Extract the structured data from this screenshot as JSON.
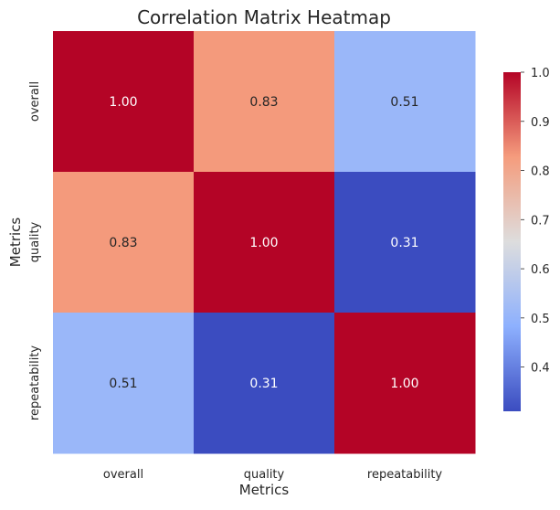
{
  "chart_data": {
    "type": "heatmap",
    "title": "Correlation Matrix Heatmap",
    "xlabel": "Metrics",
    "ylabel": "Metrics",
    "x_categories": [
      "overall",
      "quality",
      "repeatability"
    ],
    "y_categories": [
      "overall",
      "quality",
      "repeatability"
    ],
    "values": [
      [
        1.0,
        0.83,
        0.51
      ],
      [
        0.83,
        1.0,
        0.31
      ],
      [
        0.51,
        0.31,
        1.0
      ]
    ],
    "annotations": [
      [
        "1.00",
        "0.83",
        "0.51"
      ],
      [
        "0.83",
        "1.00",
        "0.31"
      ],
      [
        "0.51",
        "0.31",
        "1.00"
      ]
    ],
    "colormap": "coolwarm",
    "vmin": 0.31,
    "vmax": 1.0,
    "colorbar": {
      "ticks": [
        0.4,
        0.5,
        0.6,
        0.7,
        0.8,
        0.9,
        1.0
      ],
      "tick_labels": [
        "0.4",
        "0.5",
        "0.6",
        "0.7",
        "0.8",
        "0.9",
        "1.0"
      ]
    },
    "colorbar_position": "right",
    "grid": false
  }
}
